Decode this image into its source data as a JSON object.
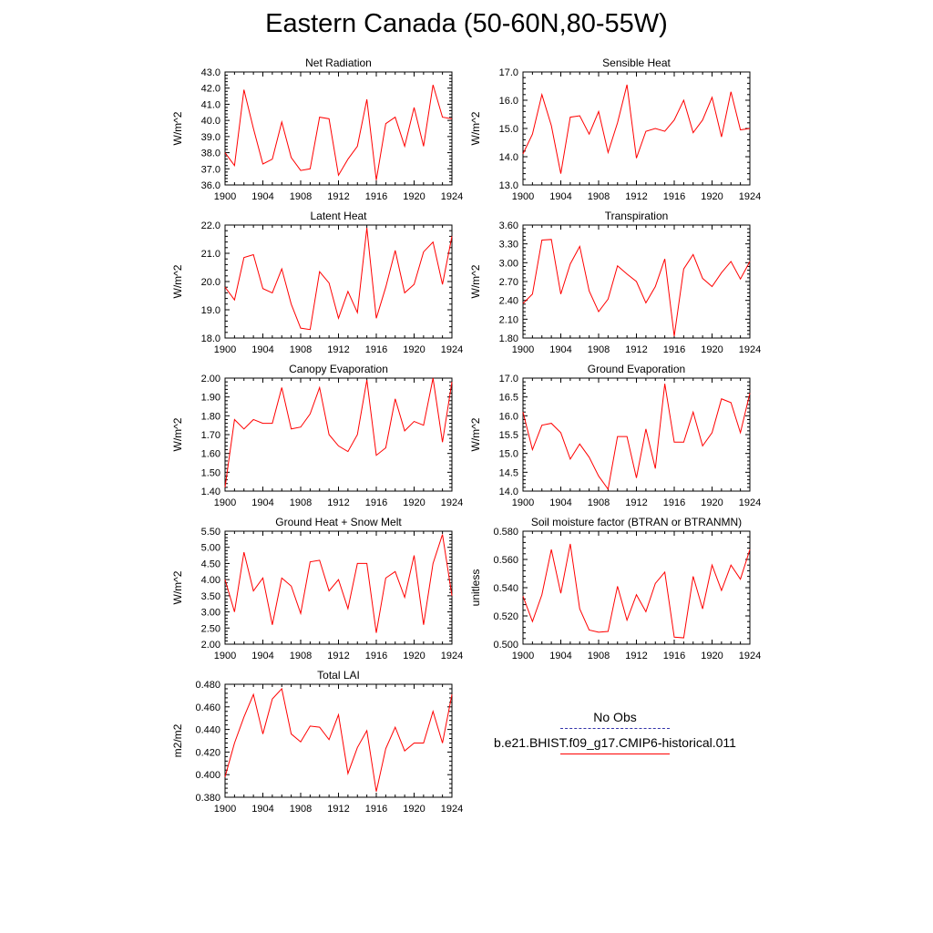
{
  "title": "Eastern Canada (50-60N,80-55W)",
  "legend": {
    "obs_label": "No Obs",
    "obs_color": "#3333aa",
    "model_label": "b.e21.BHIST.f09_g17.CMIP6-historical.011",
    "model_color": "#ff0000"
  },
  "chart_data": [
    {
      "type": "line",
      "title": "Net Radiation",
      "ylabel": "W/m^2",
      "xlim": [
        1900,
        1924
      ],
      "ylim": [
        36.0,
        43.0
      ],
      "xticks": [
        1900,
        1904,
        1908,
        1912,
        1916,
        1920,
        1924
      ],
      "yticks": [
        "36.0",
        "37.0",
        "38.0",
        "39.0",
        "40.0",
        "41.0",
        "42.0",
        "43.0"
      ],
      "x": [
        1900,
        1901,
        1902,
        1903,
        1904,
        1905,
        1906,
        1907,
        1908,
        1909,
        1910,
        1911,
        1912,
        1913,
        1914,
        1915,
        1916,
        1917,
        1918,
        1919,
        1920,
        1921,
        1922,
        1923,
        1924
      ],
      "series": [
        {
          "values": [
            38.0,
            37.2,
            41.9,
            39.5,
            37.3,
            37.6,
            39.9,
            37.7,
            36.9,
            37.0,
            40.2,
            40.1,
            36.6,
            37.6,
            38.4,
            41.3,
            36.3,
            39.8,
            40.2,
            38.4,
            40.8,
            38.4,
            42.2,
            40.2,
            40.1
          ]
        }
      ]
    },
    {
      "type": "line",
      "title": "Sensible Heat",
      "ylabel": "W/m^2",
      "xlim": [
        1900,
        1924
      ],
      "ylim": [
        13.0,
        17.0
      ],
      "xticks": [
        1900,
        1904,
        1908,
        1912,
        1916,
        1920,
        1924
      ],
      "yticks": [
        "13.0",
        "14.0",
        "15.0",
        "16.0",
        "17.0"
      ],
      "x": [
        1900,
        1901,
        1902,
        1903,
        1904,
        1905,
        1906,
        1907,
        1908,
        1909,
        1910,
        1911,
        1912,
        1913,
        1914,
        1915,
        1916,
        1917,
        1918,
        1919,
        1920,
        1921,
        1922,
        1923,
        1924
      ],
      "series": [
        {
          "values": [
            14.1,
            14.8,
            16.2,
            15.1,
            13.4,
            15.4,
            15.45,
            14.8,
            15.6,
            14.15,
            15.2,
            16.55,
            13.95,
            14.9,
            15.0,
            14.9,
            15.3,
            16.0,
            14.85,
            15.3,
            16.1,
            14.7,
            16.3,
            14.95,
            15.0
          ]
        }
      ]
    },
    {
      "type": "line",
      "title": "Latent Heat",
      "ylabel": "W/m^2",
      "xlim": [
        1900,
        1924
      ],
      "ylim": [
        18.0,
        22.0
      ],
      "xticks": [
        1900,
        1904,
        1908,
        1912,
        1916,
        1920,
        1924
      ],
      "yticks": [
        "18.0",
        "19.0",
        "20.0",
        "21.0",
        "22.0"
      ],
      "x": [
        1900,
        1901,
        1902,
        1903,
        1904,
        1905,
        1906,
        1907,
        1908,
        1909,
        1910,
        1911,
        1912,
        1913,
        1914,
        1915,
        1916,
        1917,
        1918,
        1919,
        1920,
        1921,
        1922,
        1923,
        1924
      ],
      "series": [
        {
          "values": [
            19.8,
            19.35,
            20.85,
            20.95,
            19.75,
            19.6,
            20.45,
            19.2,
            18.35,
            18.3,
            20.35,
            19.95,
            18.7,
            19.65,
            18.9,
            21.9,
            18.7,
            19.8,
            21.1,
            19.6,
            19.9,
            21.05,
            21.4,
            19.9,
            21.6
          ]
        }
      ]
    },
    {
      "type": "line",
      "title": "Transpiration",
      "ylabel": "W/m^2",
      "xlim": [
        1900,
        1924
      ],
      "ylim": [
        1.8,
        3.6
      ],
      "xticks": [
        1900,
        1904,
        1908,
        1912,
        1916,
        1920,
        1924
      ],
      "yticks": [
        "1.80",
        "2.10",
        "2.40",
        "2.70",
        "3.00",
        "3.30",
        "3.60"
      ],
      "x": [
        1900,
        1901,
        1902,
        1903,
        1904,
        1905,
        1906,
        1907,
        1908,
        1909,
        1910,
        1911,
        1912,
        1913,
        1914,
        1915,
        1916,
        1917,
        1918,
        1919,
        1920,
        1921,
        1922,
        1923,
        1924
      ],
      "series": [
        {
          "values": [
            2.35,
            2.5,
            3.36,
            3.37,
            2.5,
            2.98,
            3.26,
            2.55,
            2.22,
            2.42,
            2.95,
            2.82,
            2.7,
            2.36,
            2.62,
            3.06,
            1.83,
            2.9,
            3.13,
            2.75,
            2.62,
            2.84,
            3.02,
            2.74,
            3.02
          ]
        }
      ]
    },
    {
      "type": "line",
      "title": "Canopy Evaporation",
      "ylabel": "W/m^2",
      "xlim": [
        1900,
        1924
      ],
      "ylim": [
        1.4,
        2.0
      ],
      "xticks": [
        1900,
        1904,
        1908,
        1912,
        1916,
        1920,
        1924
      ],
      "yticks": [
        "1.40",
        "1.50",
        "1.60",
        "1.70",
        "1.80",
        "1.90",
        "2.00"
      ],
      "x": [
        1900,
        1901,
        1902,
        1903,
        1904,
        1905,
        1906,
        1907,
        1908,
        1909,
        1910,
        1911,
        1912,
        1913,
        1914,
        1915,
        1916,
        1917,
        1918,
        1919,
        1920,
        1921,
        1922,
        1923,
        1924
      ],
      "series": [
        {
          "values": [
            1.42,
            1.78,
            1.73,
            1.78,
            1.76,
            1.76,
            1.95,
            1.73,
            1.74,
            1.81,
            1.95,
            1.7,
            1.64,
            1.61,
            1.7,
            1.99,
            1.59,
            1.63,
            1.89,
            1.72,
            1.77,
            1.75,
            2.0,
            1.66,
            1.98
          ]
        }
      ]
    },
    {
      "type": "line",
      "title": "Ground Evaporation",
      "ylabel": "W/m^2",
      "xlim": [
        1900,
        1924
      ],
      "ylim": [
        14.0,
        17.0
      ],
      "xticks": [
        1900,
        1904,
        1908,
        1912,
        1916,
        1920,
        1924
      ],
      "yticks": [
        "14.0",
        "14.5",
        "15.0",
        "15.5",
        "16.0",
        "16.5",
        "17.0"
      ],
      "x": [
        1900,
        1901,
        1902,
        1903,
        1904,
        1905,
        1906,
        1907,
        1908,
        1909,
        1910,
        1911,
        1912,
        1913,
        1914,
        1915,
        1916,
        1917,
        1918,
        1919,
        1920,
        1921,
        1922,
        1923,
        1924
      ],
      "series": [
        {
          "values": [
            16.1,
            15.1,
            15.75,
            15.8,
            15.55,
            14.85,
            15.25,
            14.9,
            14.4,
            14.05,
            15.45,
            15.45,
            14.35,
            15.65,
            14.6,
            16.85,
            15.3,
            15.3,
            16.1,
            15.2,
            15.55,
            16.45,
            16.35,
            15.55,
            16.6
          ]
        }
      ]
    },
    {
      "type": "line",
      "title": "Ground Heat + Snow Melt",
      "ylabel": "W/m^2",
      "xlim": [
        1900,
        1924
      ],
      "ylim": [
        2.0,
        5.5
      ],
      "xticks": [
        1900,
        1904,
        1908,
        1912,
        1916,
        1920,
        1924
      ],
      "yticks": [
        "2.00",
        "2.50",
        "3.00",
        "3.50",
        "4.00",
        "4.50",
        "5.00",
        "5.50"
      ],
      "x": [
        1900,
        1901,
        1902,
        1903,
        1904,
        1905,
        1906,
        1907,
        1908,
        1909,
        1910,
        1911,
        1912,
        1913,
        1914,
        1915,
        1916,
        1917,
        1918,
        1919,
        1920,
        1921,
        1922,
        1923,
        1924
      ],
      "series": [
        {
          "values": [
            4.0,
            3.0,
            4.85,
            3.65,
            4.05,
            2.6,
            4.05,
            3.8,
            2.95,
            4.55,
            4.6,
            3.65,
            4.0,
            3.1,
            4.5,
            4.5,
            2.35,
            4.05,
            4.25,
            3.45,
            4.75,
            2.6,
            4.5,
            5.4,
            3.5
          ]
        }
      ]
    },
    {
      "type": "line",
      "title": "Soil moisture factor (BTRAN or BTRANMN)",
      "ylabel": "unitless",
      "xlim": [
        1900,
        1924
      ],
      "ylim": [
        0.5,
        0.58
      ],
      "xticks": [
        1900,
        1904,
        1908,
        1912,
        1916,
        1920,
        1924
      ],
      "yticks": [
        "0.500",
        "0.520",
        "0.540",
        "0.560",
        "0.580"
      ],
      "x": [
        1900,
        1901,
        1902,
        1903,
        1904,
        1905,
        1906,
        1907,
        1908,
        1909,
        1910,
        1911,
        1912,
        1913,
        1914,
        1915,
        1916,
        1917,
        1918,
        1919,
        1920,
        1921,
        1922,
        1923,
        1924
      ],
      "series": [
        {
          "values": [
            0.534,
            0.516,
            0.535,
            0.567,
            0.536,
            0.571,
            0.525,
            0.51,
            0.5085,
            0.509,
            0.541,
            0.517,
            0.535,
            0.523,
            0.543,
            0.551,
            0.505,
            0.5045,
            0.548,
            0.525,
            0.556,
            0.538,
            0.556,
            0.546,
            0.567
          ]
        }
      ]
    },
    {
      "type": "line",
      "title": "Total LAI",
      "ylabel": "m2/m2",
      "xlim": [
        1900,
        1924
      ],
      "ylim": [
        0.38,
        0.48
      ],
      "xticks": [
        1900,
        1904,
        1908,
        1912,
        1916,
        1920,
        1924
      ],
      "yticks": [
        "0.380",
        "0.400",
        "0.420",
        "0.440",
        "0.460",
        "0.480"
      ],
      "x": [
        1900,
        1901,
        1902,
        1903,
        1904,
        1905,
        1906,
        1907,
        1908,
        1909,
        1910,
        1911,
        1912,
        1913,
        1914,
        1915,
        1916,
        1917,
        1918,
        1919,
        1920,
        1921,
        1922,
        1923,
        1924
      ],
      "series": [
        {
          "values": [
            0.398,
            0.428,
            0.451,
            0.471,
            0.436,
            0.467,
            0.476,
            0.436,
            0.429,
            0.443,
            0.442,
            0.431,
            0.453,
            0.401,
            0.424,
            0.439,
            0.385,
            0.423,
            0.442,
            0.421,
            0.428,
            0.428,
            0.456,
            0.428,
            0.471
          ]
        }
      ]
    }
  ]
}
